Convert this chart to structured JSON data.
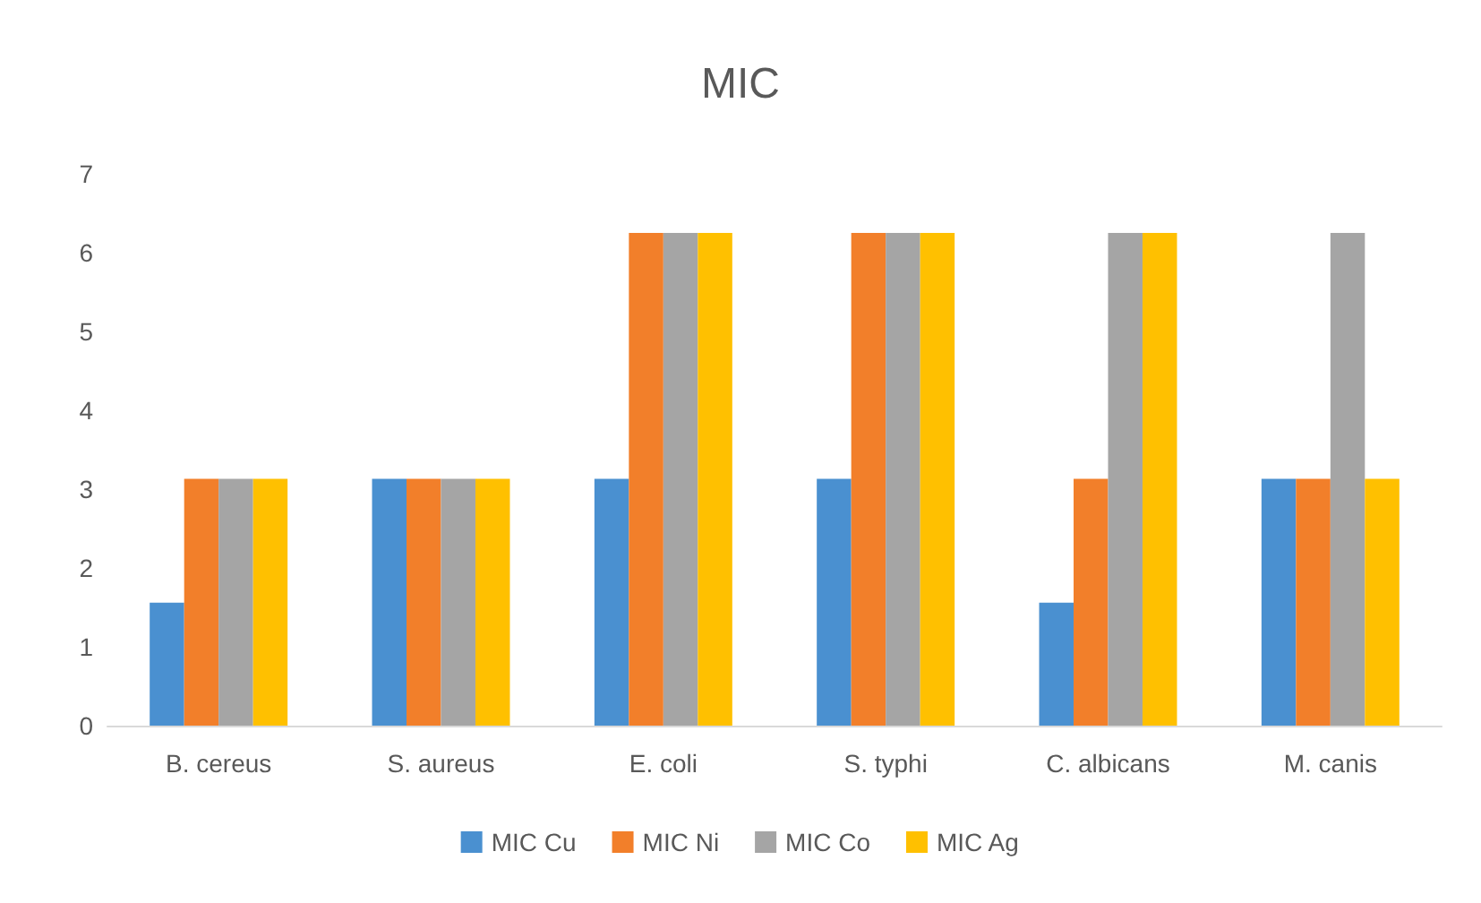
{
  "chart_data": {
    "type": "bar",
    "title": "MIC",
    "categories": [
      "B. cereus",
      "S. aureus",
      "E. coli",
      "S. typhi",
      "C. albicans",
      "M. canis"
    ],
    "series": [
      {
        "name": "MIC Cu",
        "color": "#4a90d0",
        "values": [
          1.56,
          3.13,
          3.13,
          3.13,
          1.56,
          3.13
        ]
      },
      {
        "name": "MIC Ni",
        "color": "#f27f2a",
        "values": [
          3.13,
          3.13,
          6.25,
          6.25,
          3.13,
          3.13
        ]
      },
      {
        "name": "MIC Co",
        "color": "#a5a5a5",
        "values": [
          3.13,
          3.13,
          6.25,
          6.25,
          6.25,
          6.25
        ]
      },
      {
        "name": "MIC Ag",
        "color": "#ffc000",
        "values": [
          3.13,
          3.13,
          6.25,
          6.25,
          6.25,
          3.13
        ]
      }
    ],
    "ylim": [
      0,
      7
    ],
    "yticks": [
      0,
      1,
      2,
      3,
      4,
      5,
      6,
      7
    ],
    "grid": false,
    "legend": "bottom"
  }
}
